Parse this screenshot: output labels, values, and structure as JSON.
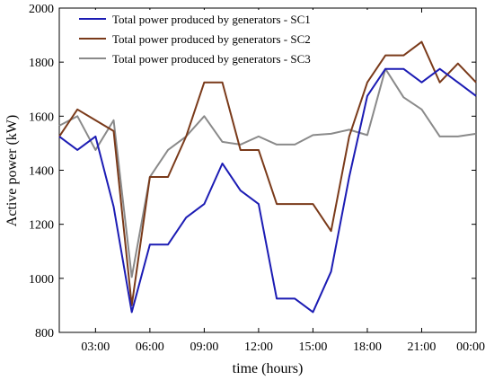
{
  "chart_data": {
    "type": "line",
    "xlabel": "time (hours)",
    "ylabel": "Active power (kW)",
    "x": [
      1,
      2,
      3,
      4,
      5,
      6,
      7,
      8,
      9,
      10,
      11,
      12,
      13,
      14,
      15,
      16,
      17,
      18,
      19,
      20,
      21,
      22,
      23,
      24
    ],
    "xlim": [
      1,
      24
    ],
    "ylim": [
      800,
      2000
    ],
    "yticks": [
      800,
      1000,
      1200,
      1400,
      1600,
      1800,
      2000
    ],
    "xticks": [
      3,
      6,
      9,
      12,
      15,
      18,
      21,
      24
    ],
    "xtick_labels": [
      "03:00",
      "06:00",
      "09:00",
      "12:00",
      "15:00",
      "18:00",
      "21:00",
      "00:00"
    ],
    "legend_position": "top-right",
    "grid": false,
    "series": [
      {
        "name": "Total power produced by generators - SC1",
        "color": "#1c1cb4",
        "values": [
          1525,
          1475,
          1525,
          1265,
          875,
          1125,
          1125,
          1225,
          1275,
          1425,
          1325,
          1275,
          925,
          925,
          875,
          1025,
          1375,
          1675,
          1775,
          1775,
          1725,
          1775,
          1725,
          1675
        ]
      },
      {
        "name": "Total power produced by generators - SC2",
        "color": "#7a3a1a",
        "values": [
          1525,
          1625,
          1585,
          1545,
          900,
          1375,
          1375,
          1525,
          1725,
          1725,
          1475,
          1475,
          1275,
          1275,
          1275,
          1175,
          1525,
          1725,
          1825,
          1825,
          1875,
          1725,
          1795,
          1725
        ]
      },
      {
        "name": "Total power produced by generators - SC3",
        "color": "#8a8a8a",
        "values": [
          1565,
          1600,
          1475,
          1585,
          1005,
          1375,
          1475,
          1525,
          1600,
          1505,
          1495,
          1525,
          1495,
          1495,
          1530,
          1535,
          1550,
          1530,
          1775,
          1670,
          1625,
          1525,
          1525,
          1535
        ]
      }
    ]
  }
}
